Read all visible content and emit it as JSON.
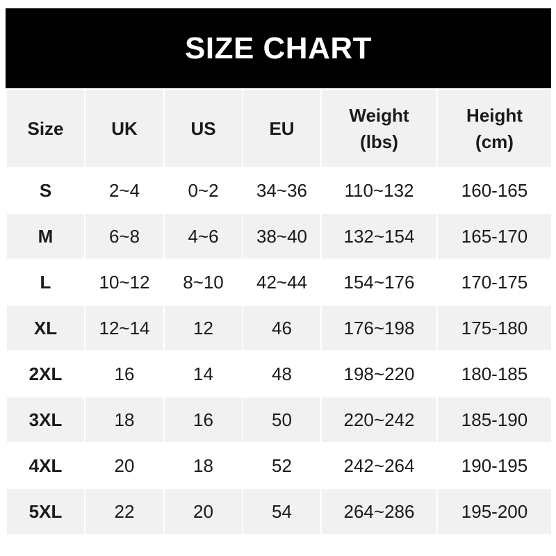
{
  "title": "SIZE CHART",
  "headers": [
    "Size",
    "UK",
    "US",
    "EU",
    "Weight\n(lbs)",
    "Height\n(cm)"
  ],
  "header_lines": [
    [
      "Size"
    ],
    [
      "UK"
    ],
    [
      "US"
    ],
    [
      "EU"
    ],
    [
      "Weight",
      "(lbs)"
    ],
    [
      "Height",
      "(cm)"
    ]
  ],
  "rows": [
    [
      "S",
      "2~4",
      "0~2",
      "34~36",
      "110~132",
      "160-165"
    ],
    [
      "M",
      "6~8",
      "4~6",
      "38~40",
      "132~154",
      "165-170"
    ],
    [
      "L",
      "10~12",
      "8~10",
      "42~44",
      "154~176",
      "170-175"
    ],
    [
      "XL",
      "12~14",
      "12",
      "46",
      "176~198",
      "175-180"
    ],
    [
      "2XL",
      "16",
      "14",
      "48",
      "198~220",
      "180-185"
    ],
    [
      "3XL",
      "18",
      "16",
      "50",
      "220~242",
      "185-190"
    ],
    [
      "4XL",
      "20",
      "18",
      "52",
      "242~264",
      "190-195"
    ],
    [
      "5XL",
      "22",
      "20",
      "54",
      "264~286",
      "195-200"
    ]
  ],
  "colors": {
    "banner": "#000000",
    "stripe": "#f1f1f1",
    "text": "#1a1a1a"
  }
}
